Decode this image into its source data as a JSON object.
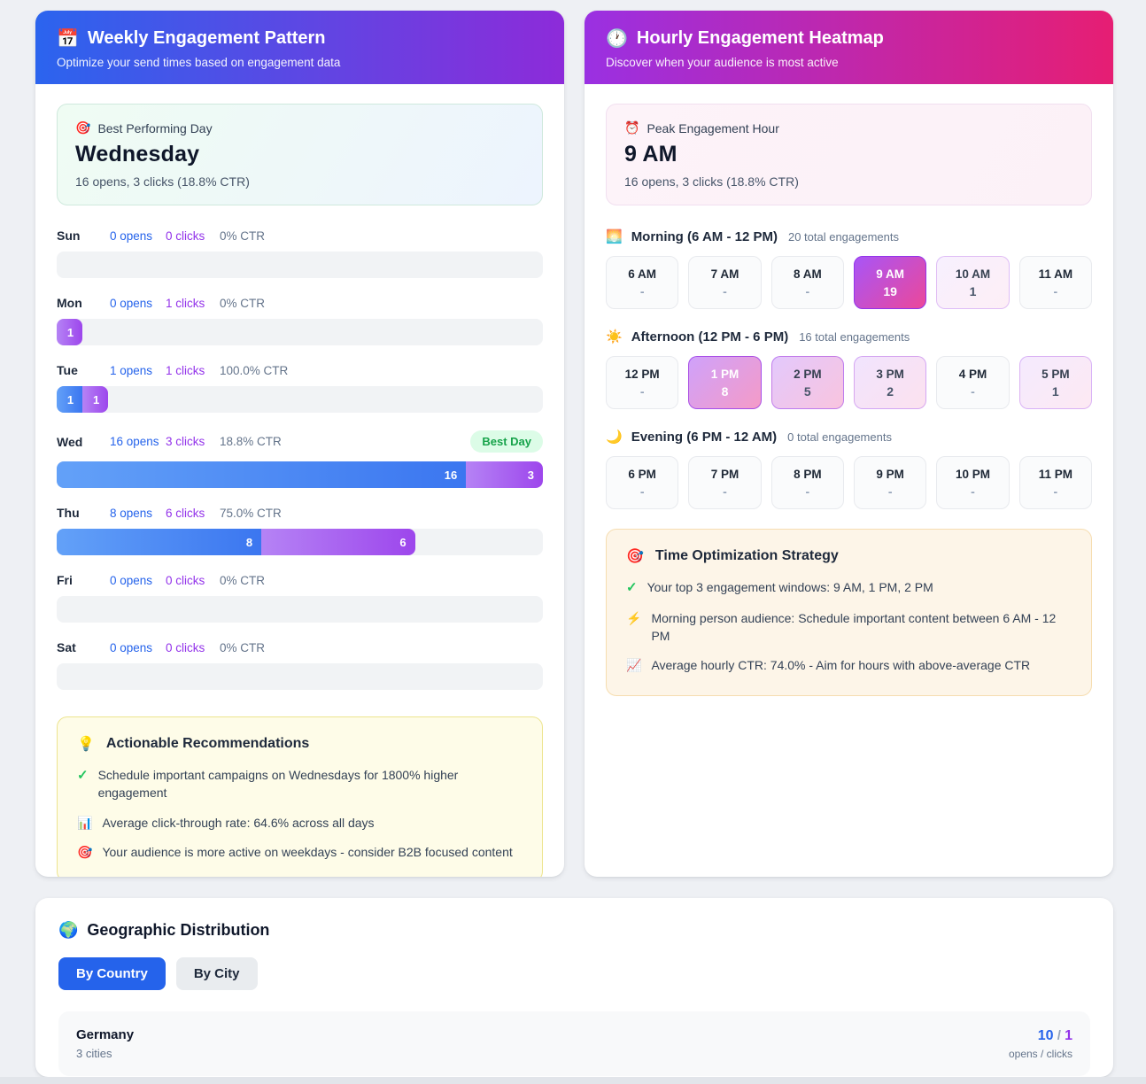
{
  "colors": {
    "opens_blue": "#2563eb",
    "clicks_purple": "#9333ea",
    "heat_purple_rgb": "168,85,247",
    "heat_pink_rgb": "236,72,153",
    "best_green": "#16a34a"
  },
  "weekly": {
    "header": {
      "icon": "📅",
      "title": "Weekly Engagement Pattern",
      "subtitle": "Optimize your send times based on engagement data"
    },
    "best": {
      "icon": "🎯",
      "label": "Best Performing Day",
      "day": "Wednesday",
      "stats": "16 opens, 3 clicks (18.8% CTR)"
    },
    "days": [
      {
        "label": "Sun",
        "opens_text": "0 opens",
        "clicks_text": "0 clicks",
        "ctr_text": "0% CTR",
        "opens": 0,
        "clicks": 0,
        "opens_pct": 0,
        "clicks_pct": 0
      },
      {
        "label": "Mon",
        "opens_text": "0 opens",
        "clicks_text": "1 clicks",
        "ctr_text": "0% CTR",
        "opens": 0,
        "clicks": 1,
        "opens_pct": 0,
        "clicks_pct": 5.3
      },
      {
        "label": "Tue",
        "opens_text": "1 opens",
        "clicks_text": "1 clicks",
        "ctr_text": "100.0% CTR",
        "opens": 1,
        "clicks": 1,
        "opens_pct": 5.3,
        "clicks_pct": 5.3
      },
      {
        "label": "Wed",
        "opens_text": "16 opens",
        "clicks_text": "3 clicks",
        "ctr_text": "18.8% CTR",
        "opens": 16,
        "clicks": 3,
        "opens_pct": 84.2,
        "clicks_pct": 15.8,
        "badge": "Best Day"
      },
      {
        "label": "Thu",
        "opens_text": "8 opens",
        "clicks_text": "6 clicks",
        "ctr_text": "75.0% CTR",
        "opens": 8,
        "clicks": 6,
        "opens_pct": 42.1,
        "clicks_pct": 31.6
      },
      {
        "label": "Fri",
        "opens_text": "0 opens",
        "clicks_text": "0 clicks",
        "ctr_text": "0% CTR",
        "opens": 0,
        "clicks": 0,
        "opens_pct": 0,
        "clicks_pct": 0
      },
      {
        "label": "Sat",
        "opens_text": "0 opens",
        "clicks_text": "0 clicks",
        "ctr_text": "0% CTR",
        "opens": 0,
        "clicks": 0,
        "opens_pct": 0,
        "clicks_pct": 0
      }
    ],
    "recommendations": {
      "icon": "💡",
      "icon_name": "bulb-icon",
      "title": "Actionable Recommendations",
      "items": [
        {
          "icon": "✓",
          "icon_name": "check-icon",
          "check": true,
          "text": "Schedule important campaigns on Wednesdays for 1800% higher engagement"
        },
        {
          "icon": "📊",
          "icon_name": "bar-chart-icon",
          "check": false,
          "text": "Average click-through rate: 64.6% across all days"
        },
        {
          "icon": "🎯",
          "icon_name": "target-icon",
          "check": false,
          "text": "Your audience is more active on weekdays - consider B2B focused content"
        }
      ]
    }
  },
  "hourly": {
    "header": {
      "icon": "🕐",
      "title": "Hourly Engagement Heatmap",
      "subtitle": "Discover when your audience is most active"
    },
    "peak": {
      "icon": "⏰",
      "label": "Peak Engagement Hour",
      "hour": "9 AM",
      "stats": "16 opens, 3 clicks (18.8% CTR)"
    },
    "sections": [
      {
        "icon": "🌅",
        "icon_name": "sunrise-icon",
        "title": "Morning (6 AM - 12 PM)",
        "total": "20 total engagements",
        "cells": [
          {
            "hour": "6 AM",
            "value": "-",
            "intensity": 0
          },
          {
            "hour": "7 AM",
            "value": "-",
            "intensity": 0
          },
          {
            "hour": "8 AM",
            "value": "-",
            "intensity": 0
          },
          {
            "hour": "9 AM",
            "value": "19",
            "intensity": 1
          },
          {
            "hour": "10 AM",
            "value": "1",
            "intensity": 0.09
          },
          {
            "hour": "11 AM",
            "value": "-",
            "intensity": 0
          }
        ]
      },
      {
        "icon": "☀️",
        "icon_name": "sun-icon",
        "title": "Afternoon (12 PM - 6 PM)",
        "total": "16 total engagements",
        "cells": [
          {
            "hour": "12 PM",
            "value": "-",
            "intensity": 0
          },
          {
            "hour": "1 PM",
            "value": "8",
            "intensity": 0.55
          },
          {
            "hour": "2 PM",
            "value": "5",
            "intensity": 0.32
          },
          {
            "hour": "3 PM",
            "value": "2",
            "intensity": 0.16
          },
          {
            "hour": "4 PM",
            "value": "-",
            "intensity": 0
          },
          {
            "hour": "5 PM",
            "value": "1",
            "intensity": 0.12
          }
        ]
      },
      {
        "icon": "🌙",
        "icon_name": "moon-icon",
        "title": "Evening (6 PM - 12 AM)",
        "total": "0 total engagements",
        "cells": [
          {
            "hour": "6 PM",
            "value": "-",
            "intensity": 0
          },
          {
            "hour": "7 PM",
            "value": "-",
            "intensity": 0
          },
          {
            "hour": "8 PM",
            "value": "-",
            "intensity": 0
          },
          {
            "hour": "9 PM",
            "value": "-",
            "intensity": 0
          },
          {
            "hour": "10 PM",
            "value": "-",
            "intensity": 0
          },
          {
            "hour": "11 PM",
            "value": "-",
            "intensity": 0
          }
        ]
      }
    ],
    "strategy": {
      "icon": "🎯",
      "icon_name": "target-icon",
      "title": "Time Optimization Strategy",
      "items": [
        {
          "icon": "✓",
          "icon_name": "check-icon",
          "check": true,
          "text": "Your top 3 engagement windows: 9 AM, 1 PM, 2 PM"
        },
        {
          "icon": "⚡",
          "icon_name": "lightning-icon",
          "check": false,
          "text": "Morning person audience: Schedule important content between 6 AM - 12 PM"
        },
        {
          "icon": "📈",
          "icon_name": "chart-up-icon",
          "check": false,
          "text": "Average hourly CTR: 74.0% - Aim for hours with above-average CTR"
        }
      ]
    }
  },
  "geo": {
    "icon": "🌍",
    "title": "Geographic Distribution",
    "tabs": [
      {
        "label": "By Country",
        "active": true
      },
      {
        "label": "By City",
        "active": false
      }
    ],
    "rows": [
      {
        "name": "Germany",
        "sub": "3 cities",
        "opens": "10",
        "slash": "/",
        "clicks": "1",
        "caption": "opens / clicks"
      }
    ]
  }
}
